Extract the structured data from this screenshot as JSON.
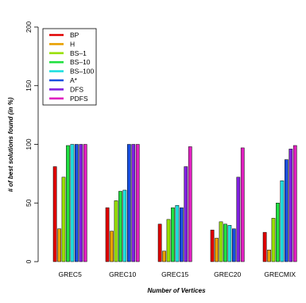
{
  "chart_data": {
    "type": "bar",
    "title": "",
    "xlabel": "Number of Vertices",
    "ylabel": "# of best solutions found (in %)",
    "ylim": [
      0,
      200
    ],
    "yticks": [
      "0",
      "50",
      "100",
      "150",
      "200"
    ],
    "categories": [
      "GREC5",
      "GREC10",
      "GREC15",
      "GREC20",
      "GRECMIX"
    ],
    "legend_position": "top-left",
    "series": [
      {
        "name": "BP",
        "color": "#e00000",
        "values": [
          81,
          46,
          32,
          27,
          25
        ]
      },
      {
        "name": "H",
        "color": "#e8a000",
        "values": [
          28,
          26,
          9,
          20,
          10
        ]
      },
      {
        "name": "BS–1",
        "color": "#98e000",
        "values": [
          72,
          52,
          36,
          34,
          37
        ]
      },
      {
        "name": "BS–10",
        "color": "#20e040",
        "values": [
          99,
          60,
          46,
          32,
          50
        ]
      },
      {
        "name": "BS–100",
        "color": "#20e0e0",
        "values": [
          100,
          61,
          48,
          31,
          69
        ]
      },
      {
        "name": "A*",
        "color": "#1850e0",
        "values": [
          100,
          100,
          46,
          28,
          87
        ]
      },
      {
        "name": "DFS",
        "color": "#8020e0",
        "values": [
          100,
          100,
          81,
          72,
          96
        ]
      },
      {
        "name": "PDFS",
        "color": "#e020c0",
        "values": [
          100,
          100,
          98,
          97,
          99
        ]
      }
    ]
  }
}
